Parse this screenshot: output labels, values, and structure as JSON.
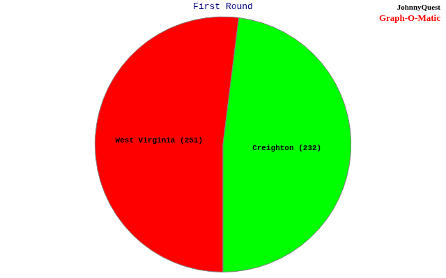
{
  "chart_data": {
    "type": "pie",
    "title": "First Round",
    "categories": [
      "West Virginia",
      "Creighton"
    ],
    "values": [
      251,
      232
    ],
    "value_labels": [
      "West Virginia (251)",
      "Creighton (232)"
    ],
    "colors": [
      "#ff0000",
      "#00ff00"
    ],
    "data_labels": true,
    "annotations": [
      "JohnnyQuest",
      "Graph-O-Matic"
    ]
  }
}
